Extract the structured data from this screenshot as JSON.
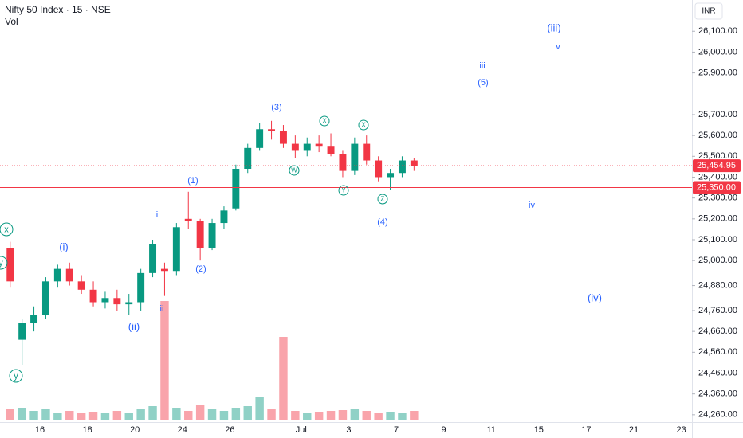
{
  "header": {
    "symbol": "Nifty 50 Index · 15 · NSE",
    "volume_label": "Vol",
    "currency": "INR"
  },
  "chart_data": {
    "type": "candlestick",
    "categories": [
      null,
      null,
      null,
      "16",
      null,
      null,
      null,
      "18",
      null,
      null,
      null,
      "20",
      null,
      null,
      null,
      "24",
      null,
      null,
      null,
      "26",
      null,
      null,
      null,
      null,
      null,
      "Jul",
      null,
      null,
      null,
      "3",
      null,
      null,
      null,
      "7",
      null,
      null,
      null,
      "9",
      null,
      null,
      null,
      "11",
      null,
      null,
      null,
      "15",
      null,
      null,
      null,
      "17",
      null,
      null,
      null,
      "21",
      null,
      null,
      null,
      "23"
    ],
    "open": [
      25060,
      24620,
      24700,
      24740,
      24900,
      24960,
      24900,
      24860,
      24800,
      24820,
      24790,
      24800,
      24940,
      24960,
      24950,
      25200,
      25190,
      25060,
      25180,
      25250,
      25440,
      25540,
      25630,
      25620,
      25560,
      25530,
      25560,
      25550,
      25510,
      25430,
      25560,
      25480,
      25400,
      25420,
      25480,
      null,
      null,
      null,
      null,
      null,
      null,
      null,
      null,
      null,
      null,
      null,
      null,
      null,
      null,
      null,
      null,
      null,
      null,
      null,
      null,
      null,
      null,
      null
    ],
    "high": [
      25090,
      24720,
      24780,
      24920,
      24980,
      24990,
      24930,
      24900,
      24850,
      24860,
      24840,
      24960,
      25100,
      24990,
      25180,
      25330,
      25200,
      25200,
      25260,
      25460,
      25560,
      25660,
      25670,
      25650,
      25600,
      25590,
      25600,
      25610,
      25530,
      25590,
      25600,
      25500,
      25440,
      25500,
      25490,
      null,
      null,
      null,
      null,
      null,
      null,
      null,
      null,
      null,
      null,
      null,
      null,
      null,
      null,
      null,
      null,
      null,
      null,
      null,
      null,
      null,
      null,
      null
    ],
    "low": [
      24870,
      24500,
      24660,
      24720,
      24870,
      24880,
      24840,
      24780,
      24770,
      24760,
      24740,
      24760,
      24920,
      24830,
      24930,
      25150,
      25000,
      25050,
      25150,
      25240,
      25420,
      25530,
      25580,
      25540,
      25490,
      25500,
      25520,
      25500,
      25400,
      25410,
      25460,
      25380,
      25340,
      25400,
      25430,
      null,
      null,
      null,
      null,
      null,
      null,
      null,
      null,
      null,
      null,
      null,
      null,
      null,
      null,
      null,
      null,
      null,
      null,
      null,
      null,
      null,
      null,
      null
    ],
    "close": [
      24900,
      24700,
      24740,
      24900,
      24960,
      24900,
      24860,
      24800,
      24820,
      24790,
      24800,
      24940,
      25080,
      24950,
      25160,
      25190,
      25060,
      25180,
      25240,
      25440,
      25540,
      25630,
      25620,
      25560,
      25530,
      25560,
      25550,
      25510,
      25430,
      25560,
      25480,
      25400,
      25420,
      25480,
      25454.95,
      null,
      null,
      null,
      null,
      null,
      null,
      null,
      null,
      null,
      null,
      null,
      null,
      null,
      null,
      null,
      null,
      null,
      null,
      null,
      null,
      null,
      null,
      null
    ],
    "volume": [
      14,
      16,
      12,
      14,
      10,
      12,
      9,
      11,
      10,
      12,
      9,
      14,
      18,
      150,
      16,
      12,
      20,
      14,
      12,
      16,
      18,
      30,
      14,
      105,
      12,
      10,
      11,
      12,
      13,
      14,
      12,
      10,
      11,
      9,
      12,
      null,
      null,
      null,
      null,
      null,
      null,
      null,
      null,
      null,
      null,
      null,
      null,
      null,
      null,
      null,
      null,
      null,
      null,
      null,
      null,
      null,
      null,
      null
    ],
    "up_color": "#089981",
    "down_color": "#f23645",
    "ylim": [
      24225,
      26250
    ],
    "yticks": [
      {
        "value": 24260,
        "label": "24,260.00"
      },
      {
        "value": 24360,
        "label": "24,360.00"
      },
      {
        "value": 24460,
        "label": "24,460.00"
      },
      {
        "value": 24560,
        "label": "24,560.00"
      },
      {
        "value": 24660,
        "label": "24,660.00"
      },
      {
        "value": 24760,
        "label": "24,760.00"
      },
      {
        "value": 24880,
        "label": "24,880.00"
      },
      {
        "value": 25000,
        "label": "25,000.00"
      },
      {
        "value": 25100,
        "label": "25,100.00"
      },
      {
        "value": 25200,
        "label": "25,200.00"
      },
      {
        "value": 25300,
        "label": "25,300.00"
      },
      {
        "value": 25400,
        "label": "25,400.00"
      },
      {
        "value": 25500,
        "label": "25,500.00"
      },
      {
        "value": 25600,
        "label": "25,600.00"
      },
      {
        "value": 25700,
        "label": "25,700.00"
      },
      {
        "value": 25900,
        "label": "25,900.00"
      },
      {
        "value": 26000,
        "label": "26,000.00"
      },
      {
        "value": 26100,
        "label": "26,100.00"
      }
    ],
    "price_lines": [
      {
        "value": 25454.95,
        "label": "25,454.95",
        "color": "#f23645",
        "style": "dotted"
      },
      {
        "value": 25350,
        "label": "25,350.00",
        "color": "#f23645",
        "style": "solid"
      }
    ],
    "annotations": {
      "wave": [
        "(3)",
        "(1)",
        "i",
        "(i)",
        "(ii)",
        "ii",
        "(2)",
        "(4)",
        "iii",
        "(5)",
        "(iii)",
        "v",
        "iv",
        "(iv)"
      ],
      "wave_color": "#2962ff",
      "corrective": [
        "x",
        "y",
        "y",
        "W",
        "X",
        "Y",
        "X",
        "Z"
      ],
      "corrective_color": "#089981"
    }
  }
}
